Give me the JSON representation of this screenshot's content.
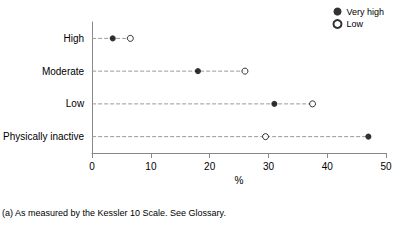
{
  "chart_data": {
    "type": "scatter",
    "orientation": "horizontal",
    "categories": [
      "High",
      "Moderate",
      "Low",
      "Physically inactive"
    ],
    "series": [
      {
        "name": "Very high",
        "color": "#000000",
        "marker": "circle",
        "values": [
          3.5,
          18,
          31,
          47
        ]
      },
      {
        "name": "Low",
        "color": "#000000",
        "marker": "emptyCircle",
        "values": [
          6.5,
          26,
          37.5,
          29.5
        ]
      }
    ],
    "x_label": "%",
    "annotation": "(a) As measured by the Kessler 10 Scale. See Glossary.",
    "xlim": [
      0,
      50
    ],
    "xticks": [
      0,
      10,
      20,
      30,
      40,
      50
    ],
    "grid": false,
    "legend": "top-right"
  }
}
